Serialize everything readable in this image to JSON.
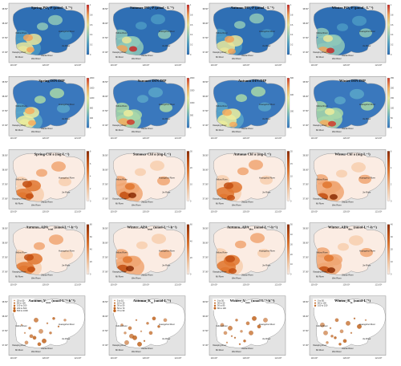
{
  "axes": {
    "x_ticks": [
      "119.00°",
      "120.00°",
      "121.00°"
    ],
    "y_ticks": [
      "38.50°",
      "38.00°",
      "37.50°",
      "37.00°"
    ]
  },
  "river_labels": [
    "Yellow River",
    "Huangshui River",
    "Jie River",
    "Xiaoqing River",
    "Mi River",
    "Jiaolai River",
    "Wei River"
  ],
  "panels": [
    {
      "title": "Spring PO₄-P",
      "unit": "(μmol · L⁻¹)",
      "kind": "field",
      "scheme": "po4",
      "cb": [
        "1",
        "0.8",
        "0.6",
        "0.4",
        "0.2",
        "0"
      ]
    },
    {
      "title": "Summer PO₄-P",
      "unit": "(μmol · L⁻¹)",
      "kind": "field",
      "scheme": "po4",
      "cb": [
        "1",
        "0.8",
        "0.6",
        "0.4",
        "0.2",
        "0"
      ]
    },
    {
      "title": "Autumn PO₄-P",
      "unit": "(μmol · L⁻¹)",
      "kind": "field",
      "scheme": "po4",
      "cb": [
        "1",
        "0.8",
        "0.6",
        "0.4",
        "0.2",
        "0"
      ]
    },
    {
      "title": "Winter PO₄-P",
      "unit": "(μmol · L⁻¹)",
      "kind": "field",
      "scheme": "po4",
      "cb": [
        "1",
        "0.8",
        "0.6",
        "0.4",
        "0.2",
        "0"
      ]
    },
    {
      "title": "Spring DIN:DIP",
      "unit": "",
      "kind": "field",
      "scheme": "din",
      "cb": [
        "2000",
        "1600",
        "1200",
        "800",
        "400",
        "0"
      ]
    },
    {
      "title": "Summer DIN:DIP",
      "unit": "",
      "kind": "field",
      "scheme": "din",
      "cb": [
        "2000",
        "1500",
        "1000",
        "500",
        "0"
      ]
    },
    {
      "title": "Autumn DIN:DIP",
      "unit": "",
      "kind": "field",
      "scheme": "din",
      "cb": [
        "600",
        "400",
        "200",
        "0"
      ]
    },
    {
      "title": "Winter DIN:DIP",
      "unit": "",
      "kind": "field",
      "scheme": "din",
      "cb": [
        "250",
        "200",
        "150",
        "100",
        "50",
        "0"
      ]
    },
    {
      "title": "Spring Chl a",
      "unit": "(mg·L⁻¹)",
      "kind": "field",
      "scheme": "orange",
      "cb": [
        "8",
        "6",
        "4",
        "2",
        "0"
      ]
    },
    {
      "title": "Summer Chl a",
      "unit": "(mg·L⁻¹)",
      "kind": "field",
      "scheme": "orange",
      "cb": [
        "30",
        "20",
        "10",
        "0"
      ]
    },
    {
      "title": "Autumn Chl a",
      "unit": "(mg·L⁻¹)",
      "kind": "field",
      "scheme": "orange",
      "cb": [
        "20",
        "15",
        "10",
        "5",
        "0"
      ]
    },
    {
      "title": "Winter Chl a",
      "unit": "(mg·L⁻¹)",
      "kind": "field",
      "scheme": "orange",
      "cb": [
        "6",
        "4",
        "2",
        "0"
      ]
    },
    {
      "title": "Autumn_APA",
      "sub": "total",
      "unit": "(nmol·L⁻¹·h⁻¹)",
      "kind": "field",
      "scheme": "orange",
      "cb": [
        "80",
        "60",
        "40",
        "20",
        "0"
      ]
    },
    {
      "title": "Winter_APA",
      "sub": "total",
      "unit": "(nmol·L⁻¹·h⁻¹)",
      "kind": "field",
      "scheme": "orange",
      "cb": [
        "60",
        "40",
        "20",
        "0"
      ]
    },
    {
      "title": "Autumn_APA",
      "sub": "diss",
      "unit": "(nmol·L⁻¹·h⁻¹)",
      "kind": "field",
      "scheme": "orange",
      "cb": [
        "50",
        "40",
        "30",
        "20",
        "10",
        "0"
      ]
    },
    {
      "title": "Winter_APA",
      "sub": "diss",
      "unit": "(nmol·L⁻¹·h⁻¹)",
      "kind": "field",
      "scheme": "orange",
      "cb": [
        "40",
        "30",
        "20",
        "10",
        "0"
      ]
    },
    {
      "title": "Autumn_V",
      "sub": "max",
      "unit": "(nmol·L⁻¹·h⁻¹)",
      "kind": "bubble",
      "legend": [
        "25  to  50",
        "50  to  100",
        "100 to  200",
        "200 to  500",
        "500 to  1000"
      ]
    },
    {
      "title": "Autumn_K",
      "sub": "m",
      "unit": "(nmol·L⁻¹)",
      "kind": "bubble",
      "legend": [
        "5  to  10",
        "10  to  30",
        "30  to  50",
        "50  to  70",
        "70  to  90"
      ]
    },
    {
      "title": "Winter_V",
      "sub": "max",
      "unit": "(nmol·L⁻¹·h⁻¹)",
      "kind": "bubble",
      "legend": [
        "0  to  30",
        "30  to  50",
        "50  to  80",
        "80  to  100"
      ]
    },
    {
      "title": "Winter_K",
      "sub": "m",
      "unit": "(nmol·L⁻¹)",
      "kind": "bubble",
      "legend": [
        "0  to  50",
        "50  to  100",
        "100 to  150"
      ]
    }
  ],
  "colors": {
    "land": "#e3e3e3",
    "coast": "#9a9a9a",
    "po4": [
      "#2f6fb4",
      "#4b9ac4",
      "#8fc9b8",
      "#e9e59a",
      "#f0a35a",
      "#c62828"
    ],
    "din": [
      "#3a78bd",
      "#5aa6c9",
      "#a9d8a8",
      "#ecec9c",
      "#f5ab5e",
      "#cf3a2a"
    ],
    "orange": [
      "#fbece3",
      "#f7cfae",
      "#f0a672",
      "#e0762f",
      "#c24e10",
      "#8a2c05"
    ],
    "bubble": "#c2621a"
  }
}
